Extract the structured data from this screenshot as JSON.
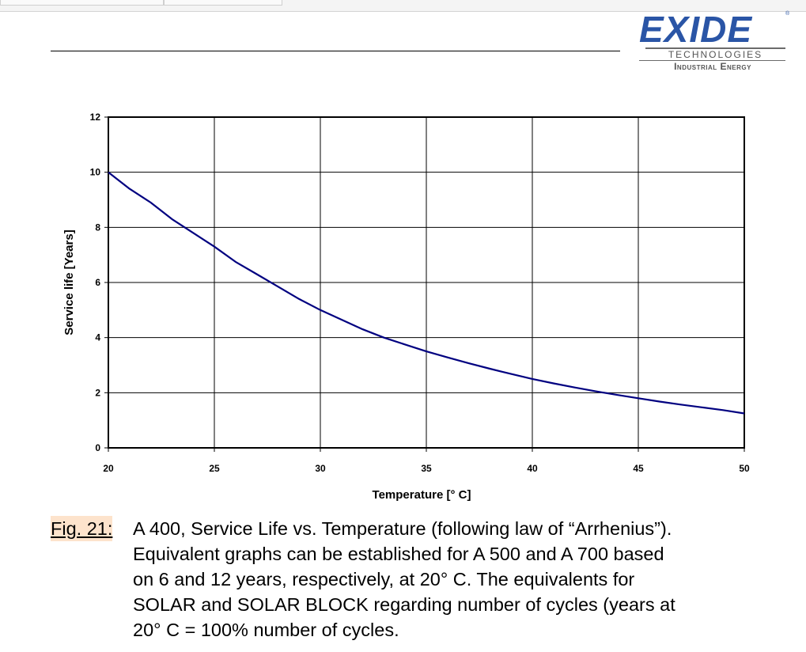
{
  "logo": {
    "word": "EXIDE",
    "line1": "TECHNOLOGIES",
    "line2": "Industrial Energy"
  },
  "caption": {
    "label": "Fig. 21:",
    "lines": [
      "A 400, Service Life vs. Temperature (following law of “Arrhenius”).",
      "Equivalent graphs can be established for A 500 and A 700 based",
      "on 6 and 12 years, respectively, at 20° C. The equivalents for",
      "SOLAR and SOLAR BLOCK regarding number of cycles (years at",
      "20° C = 100% number of cycles."
    ]
  },
  "colors": {
    "line": "#000080",
    "grid": "#000000",
    "logo": "#2a55a6",
    "caption_highlight": "#fde3cc"
  },
  "chart_data": {
    "type": "line",
    "title": "",
    "xlabel": "Temperature [° C]",
    "ylabel": "Service life [Years]",
    "xlim": [
      20,
      50
    ],
    "ylim": [
      0,
      12
    ],
    "xticks": [
      20,
      25,
      30,
      35,
      40,
      45,
      50
    ],
    "yticks": [
      0,
      2,
      4,
      6,
      8,
      10,
      12
    ],
    "grid": true,
    "legend": "none",
    "series": [
      {
        "x": [
          20,
          21,
          22,
          23,
          24,
          25,
          26,
          27,
          28,
          29,
          30,
          31,
          32,
          33,
          34,
          35,
          36,
          37,
          38,
          39,
          40,
          41,
          42,
          43,
          44,
          45,
          46,
          47,
          48,
          49,
          50
        ],
        "y": [
          10,
          9.4,
          8.9,
          8.3,
          7.8,
          7.3,
          6.75,
          6.3,
          5.85,
          5.4,
          5.0,
          4.65,
          4.3,
          4.0,
          3.75,
          3.5,
          3.28,
          3.07,
          2.87,
          2.68,
          2.5,
          2.34,
          2.19,
          2.05,
          1.92,
          1.8,
          1.68,
          1.57,
          1.47,
          1.37,
          1.25
        ]
      }
    ]
  }
}
